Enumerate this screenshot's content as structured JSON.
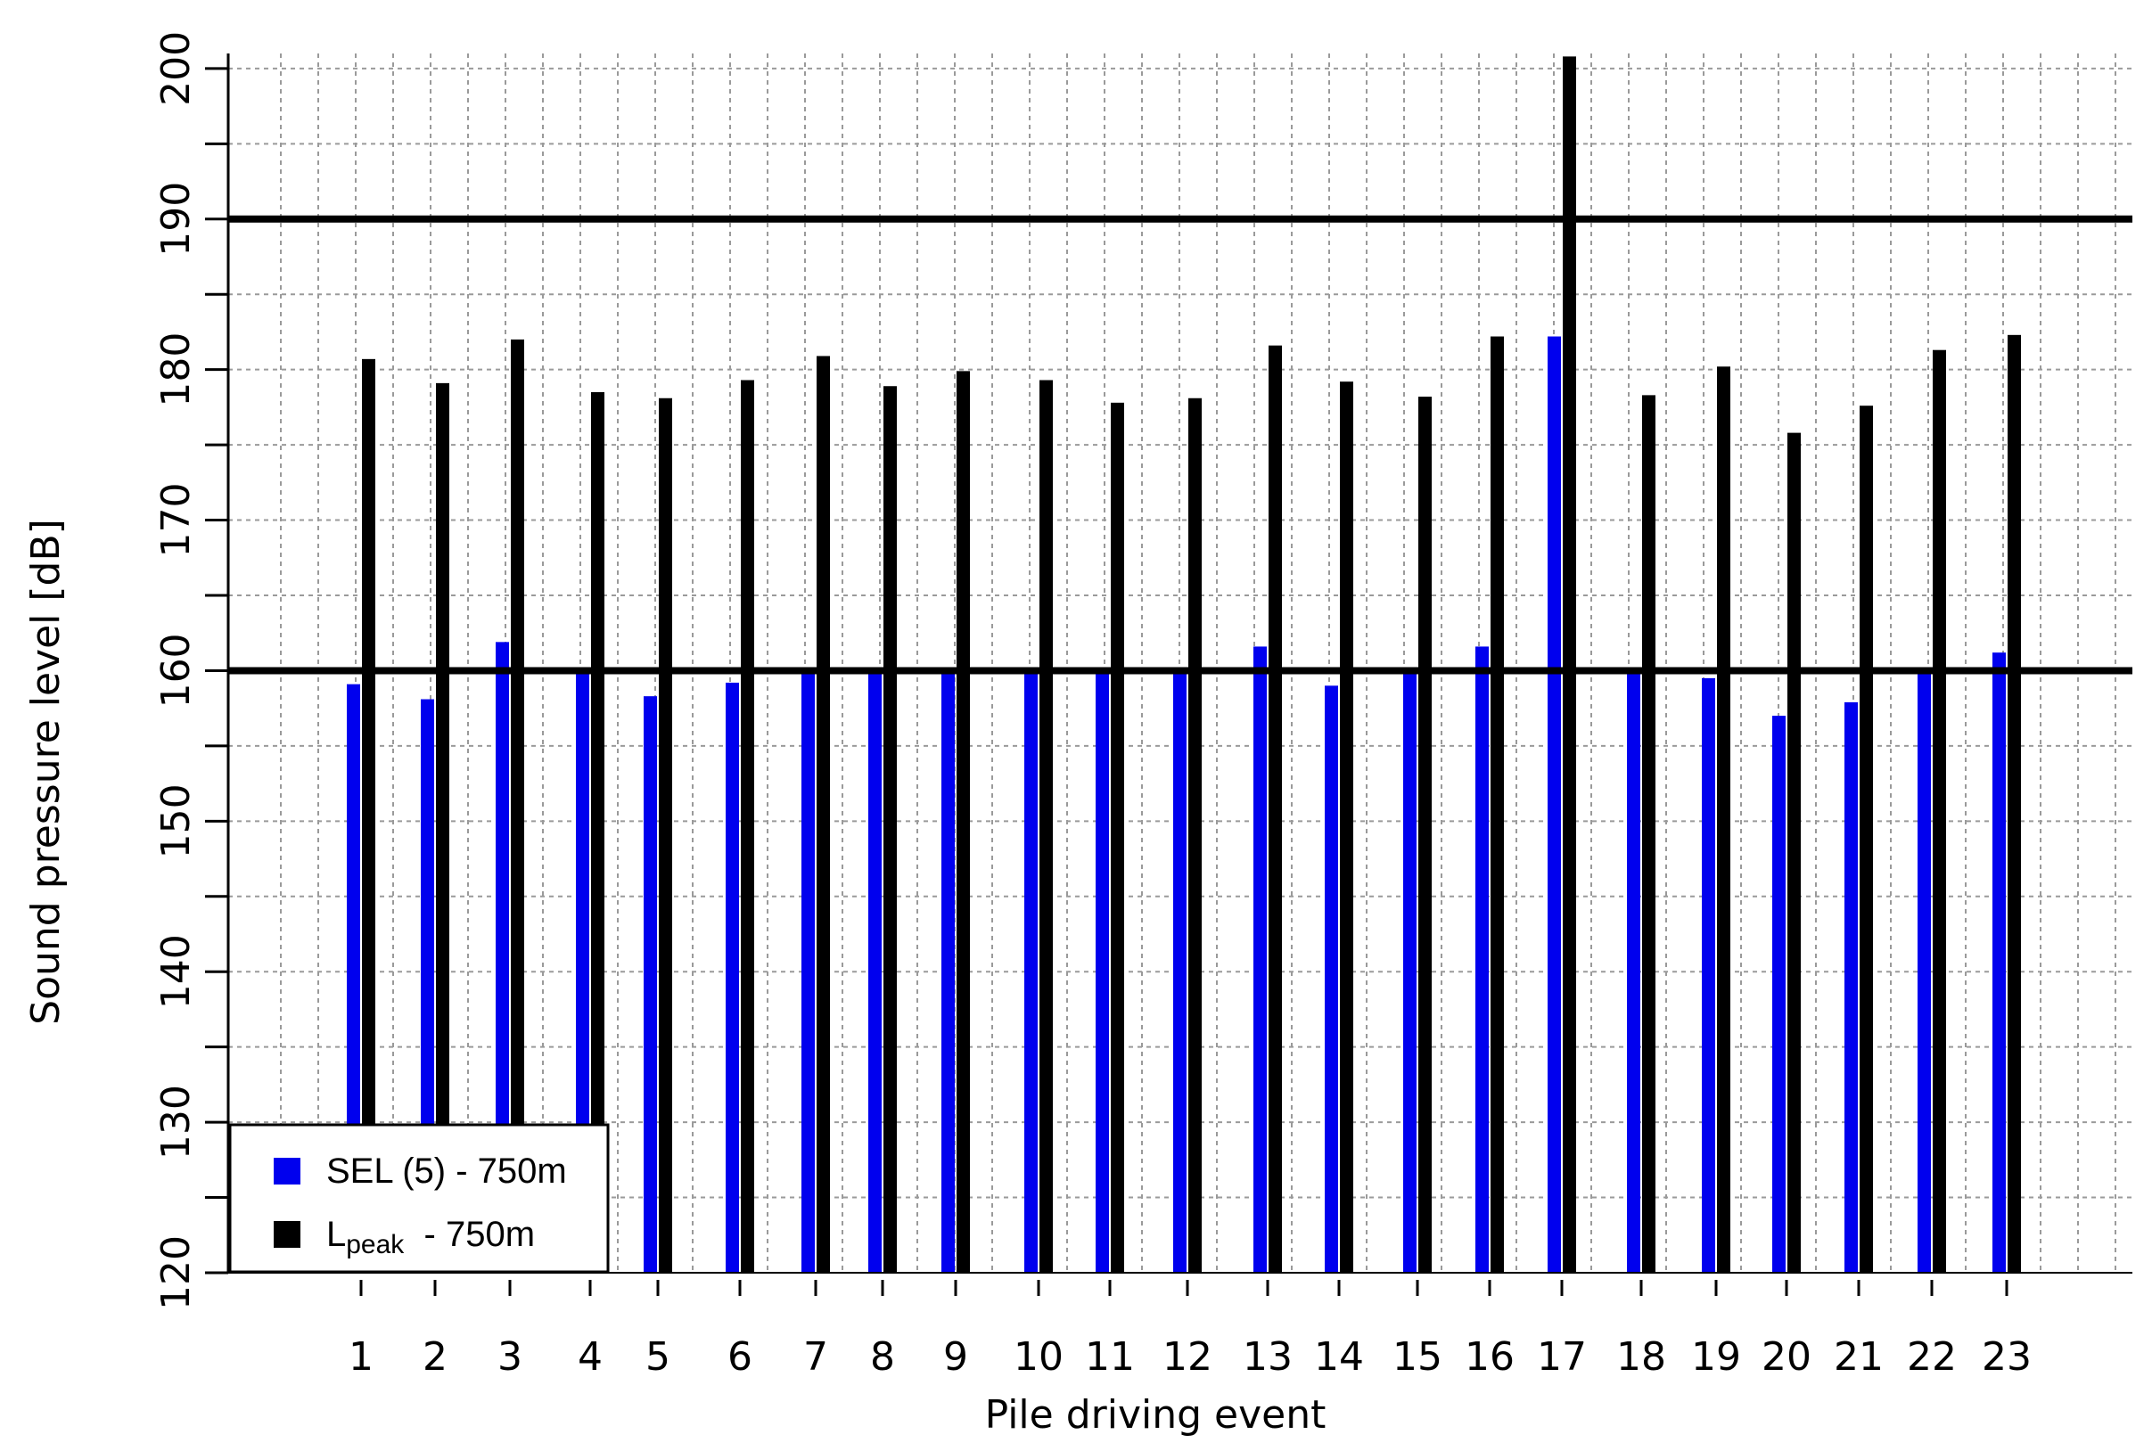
{
  "chart_data": {
    "type": "bar",
    "xlabel": "Pile driving event",
    "ylabel": "Sound pressure level [dB]",
    "ylim": [
      120,
      201
    ],
    "yticks": [
      120,
      130,
      140,
      150,
      160,
      170,
      180,
      190,
      200
    ],
    "grid": true,
    "legend_position": "bottom-left",
    "categories": [
      "1",
      "2",
      "3",
      "4",
      "5",
      "6",
      "7",
      "8",
      "9",
      "10",
      "11",
      "12",
      "13",
      "14",
      "15",
      "16",
      "17",
      "18",
      "19",
      "20",
      "21",
      "22",
      "23"
    ],
    "series": [
      {
        "name": "SEL (5) - 750m",
        "color": "#0000ee",
        "values": [
          159.1,
          158.1,
          161.9,
          159.8,
          158.3,
          159.2,
          159.8,
          160.0,
          159.9,
          159.8,
          159.9,
          159.8,
          161.6,
          159.0,
          159.8,
          161.6,
          182.2,
          159.8,
          159.5,
          157.0,
          157.9,
          159.8,
          161.2
        ]
      },
      {
        "name_main": "L",
        "name_sub": "peak",
        "name_suffix": "  - 750m",
        "color": "#000000",
        "values": [
          180.7,
          179.1,
          182.0,
          178.5,
          178.1,
          179.3,
          180.9,
          178.9,
          179.9,
          179.3,
          177.8,
          178.1,
          181.6,
          179.2,
          178.2,
          182.2,
          200.8,
          178.3,
          180.2,
          175.8,
          177.6,
          181.3,
          182.3
        ]
      }
    ],
    "reference_lines": [
      160,
      190
    ]
  }
}
